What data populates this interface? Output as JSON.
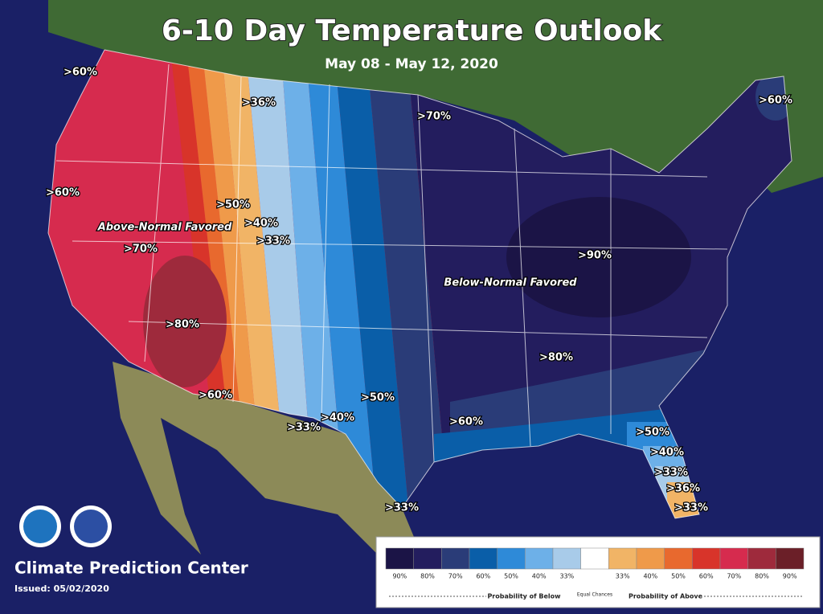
{
  "header": {
    "title": "6-10 Day Temperature Outlook",
    "subtitle": "May 08 - May 12, 2020"
  },
  "map_labels": [
    ">60%",
    ">36%",
    ">70%",
    ">60%",
    ">60%",
    ">50%",
    ">40%",
    ">33%",
    "Above-Normal Favored",
    ">70%",
    ">90%",
    "Below-Normal Favored",
    ">80%",
    ">80%",
    ">60%",
    ">50%",
    ">40%",
    ">33%",
    ">60%",
    ">50%",
    ">40%",
    ">33%",
    ">36%",
    ">33%",
    ">33%"
  ],
  "legend": {
    "swatches": [
      {
        "label": "90%",
        "color": "#1b1446"
      },
      {
        "label": "80%",
        "color": "#231d5e"
      },
      {
        "label": "70%",
        "color": "#2a3c78"
      },
      {
        "label": "60%",
        "color": "#0a5ea8"
      },
      {
        "label": "50%",
        "color": "#2e8ad8"
      },
      {
        "label": "40%",
        "color": "#6db0e8"
      },
      {
        "label": "33%",
        "color": "#a8cbe9"
      },
      {
        "label": "Equal Chances",
        "color": "#ffffff"
      },
      {
        "label": "33%",
        "color": "#f1b466"
      },
      {
        "label": "40%",
        "color": "#ef9a4a"
      },
      {
        "label": "50%",
        "color": "#e8692e"
      },
      {
        "label": "60%",
        "color": "#d8342a"
      },
      {
        "label": "70%",
        "color": "#d62b4e"
      },
      {
        "label": "80%",
        "color": "#9e2a3c"
      },
      {
        "label": "90%",
        "color": "#6b1f28"
      }
    ],
    "below_label": "Probability of Below",
    "above_label": "Probability of Above"
  },
  "footer": {
    "agency": "Climate Prediction Center",
    "issued": "Issued: 05/02/2020"
  }
}
